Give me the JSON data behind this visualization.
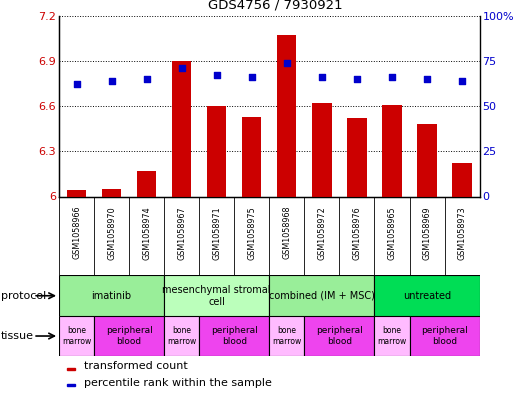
{
  "title": "GDS4756 / 7930921",
  "samples": [
    "GSM1058966",
    "GSM1058970",
    "GSM1058974",
    "GSM1058967",
    "GSM1058971",
    "GSM1058975",
    "GSM1058968",
    "GSM1058972",
    "GSM1058976",
    "GSM1058965",
    "GSM1058969",
    "GSM1058973"
  ],
  "bar_values": [
    6.04,
    6.05,
    6.17,
    6.9,
    6.6,
    6.53,
    7.07,
    6.62,
    6.52,
    6.61,
    6.48,
    6.22
  ],
  "dot_values": [
    62,
    64,
    65,
    71,
    67,
    66,
    74,
    66,
    65,
    66,
    65,
    64
  ],
  "ylim_left": [
    6.0,
    7.2
  ],
  "ylim_right": [
    0,
    100
  ],
  "yticks_left": [
    6.0,
    6.3,
    6.6,
    6.9,
    7.2
  ],
  "yticks_right": [
    0,
    25,
    50,
    75,
    100
  ],
  "ytick_labels_left": [
    "6",
    "6.3",
    "6.6",
    "6.9",
    "7.2"
  ],
  "ytick_labels_right": [
    "0",
    "25",
    "50",
    "75",
    "100%"
  ],
  "bar_color": "#cc0000",
  "dot_color": "#0000cc",
  "grid_color": "#000000",
  "xtick_bg_color": "#c8c8c8",
  "protocol_groups": [
    {
      "label": "imatinib",
      "start": 0,
      "end": 3,
      "color": "#99ee99"
    },
    {
      "label": "mesenchymal stromal\ncell",
      "start": 3,
      "end": 6,
      "color": "#bbffbb"
    },
    {
      "label": "combined (IM + MSC)",
      "start": 6,
      "end": 9,
      "color": "#99ee99"
    },
    {
      "label": "untreated",
      "start": 9,
      "end": 12,
      "color": "#00dd55"
    }
  ],
  "tissue_groups": [
    {
      "label": "bone\nmarrow",
      "start": 0,
      "end": 1,
      "color": "#ffbbff"
    },
    {
      "label": "peripheral\nblood",
      "start": 1,
      "end": 3,
      "color": "#ee44ee"
    },
    {
      "label": "bone\nmarrow",
      "start": 3,
      "end": 4,
      "color": "#ffbbff"
    },
    {
      "label": "peripheral\nblood",
      "start": 4,
      "end": 6,
      "color": "#ee44ee"
    },
    {
      "label": "bone\nmarrow",
      "start": 6,
      "end": 7,
      "color": "#ffbbff"
    },
    {
      "label": "peripheral\nblood",
      "start": 7,
      "end": 9,
      "color": "#ee44ee"
    },
    {
      "label": "bone\nmarrow",
      "start": 9,
      "end": 10,
      "color": "#ffbbff"
    },
    {
      "label": "peripheral\nblood",
      "start": 10,
      "end": 12,
      "color": "#ee44ee"
    }
  ],
  "legend_items": [
    {
      "label": "transformed count",
      "color": "#cc0000"
    },
    {
      "label": "percentile rank within the sample",
      "color": "#0000cc"
    }
  ],
  "protocol_label": "protocol",
  "tissue_label": "tissue",
  "bg_color": "#ffffff"
}
